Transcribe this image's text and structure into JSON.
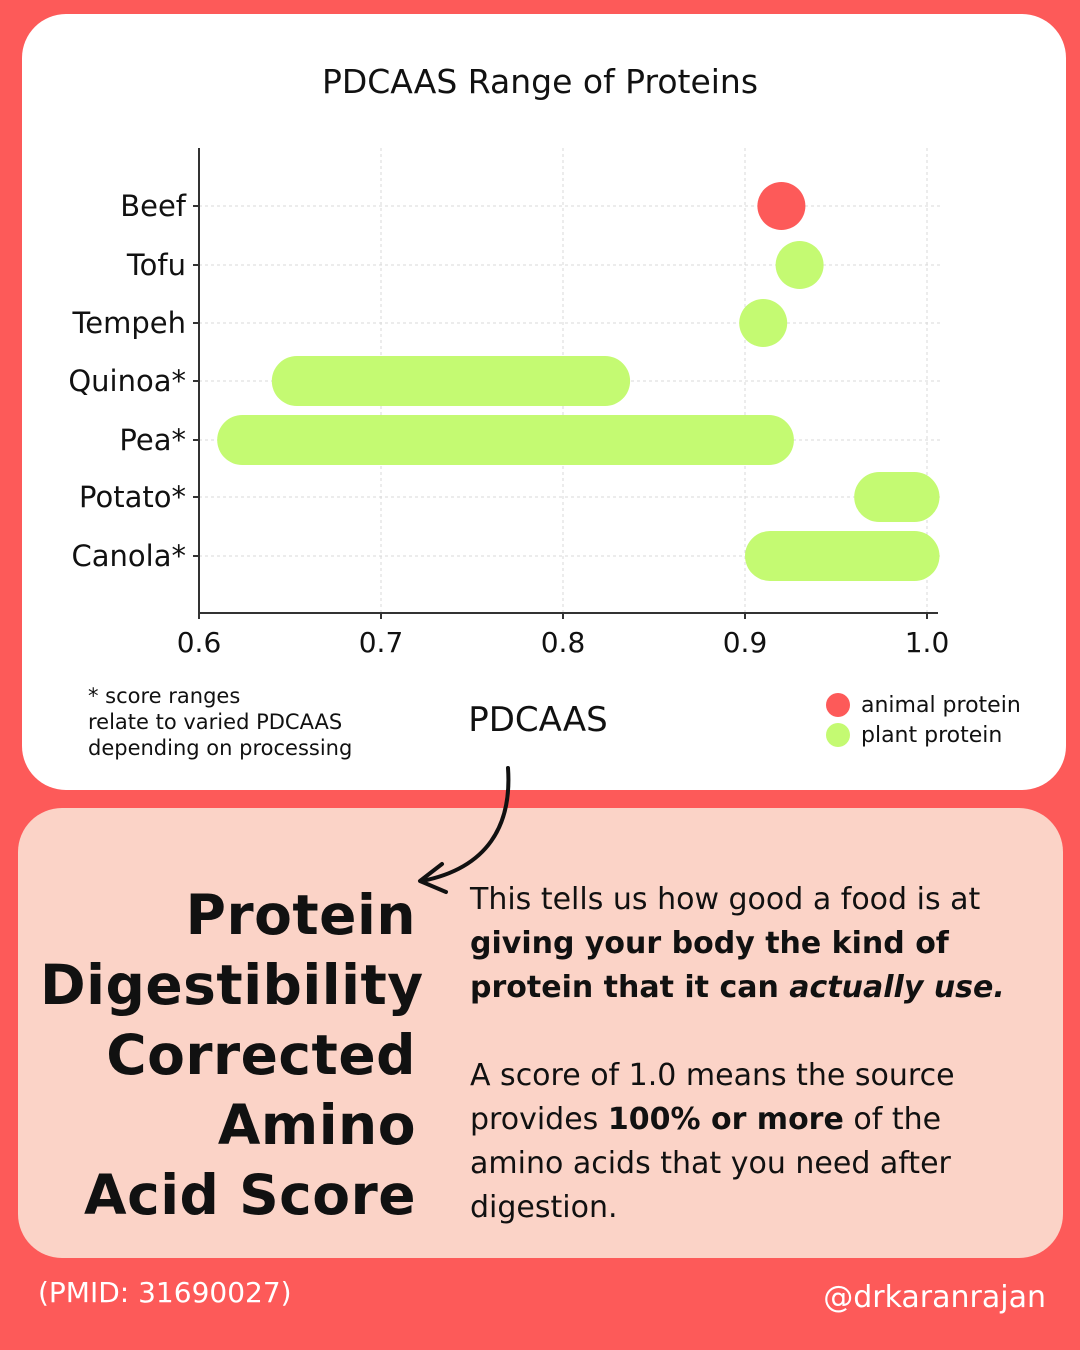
{
  "chart_data": {
    "type": "range-bar",
    "title": "PDCAAS Range of Proteins",
    "xlabel": "PDCAAS",
    "ylabel": "",
    "xlim": [
      0.6,
      1.0
    ],
    "xticks": [
      "0.6",
      "0.7",
      "0.8",
      "0.9",
      "1.0"
    ],
    "grid": true,
    "categories": [
      "Beef",
      "Tofu",
      "Tempeh",
      "Quinoa*",
      "Pea*",
      "Potato*",
      "Canola*"
    ],
    "ranges": [
      {
        "label": "Beef",
        "min": 0.92,
        "max": 0.92,
        "group": "animal protein"
      },
      {
        "label": "Tofu",
        "min": 0.93,
        "max": 0.93,
        "group": "plant protein"
      },
      {
        "label": "Tempeh",
        "min": 0.91,
        "max": 0.91,
        "group": "plant protein"
      },
      {
        "label": "Quinoa*",
        "min": 0.64,
        "max": 0.83,
        "group": "plant protein"
      },
      {
        "label": "Pea*",
        "min": 0.61,
        "max": 0.92,
        "group": "plant protein"
      },
      {
        "label": "Potato*",
        "min": 0.96,
        "max": 1.0,
        "group": "plant protein"
      },
      {
        "label": "Canola*",
        "min": 0.9,
        "max": 1.0,
        "group": "plant protein"
      }
    ],
    "legend": [
      {
        "label": "animal protein",
        "color": "#fd5a59"
      },
      {
        "label": "plant protein",
        "color": "#c4fa72"
      }
    ],
    "legend_position": "bottom-right"
  },
  "footnote": "* score ranges\nrelate to varied PDCAAS\ndepending on processing",
  "definition": {
    "title_lines": [
      "Protein",
      "Digestibility",
      "Corrected",
      "Amino",
      "Acid Score"
    ],
    "para1_plain": "This tells us how good a food is at ",
    "para1_bold": "giving your body the kind of protein that it can ",
    "para1_bold_italic": "actually use.",
    "para2_plain1": "A score of 1.0 means the source provides ",
    "para2_bold": "100% or more",
    "para2_plain2": " of the amino acids that you need after digestion."
  },
  "citation": "(PMID: 31690027)",
  "handle": "@drkaranrajan",
  "colors": {
    "background": "#fd5a59",
    "card": "#ffffff",
    "card_bottom": "#fbd3c7",
    "animal": "#fd5a59",
    "plant": "#c4fa72"
  }
}
